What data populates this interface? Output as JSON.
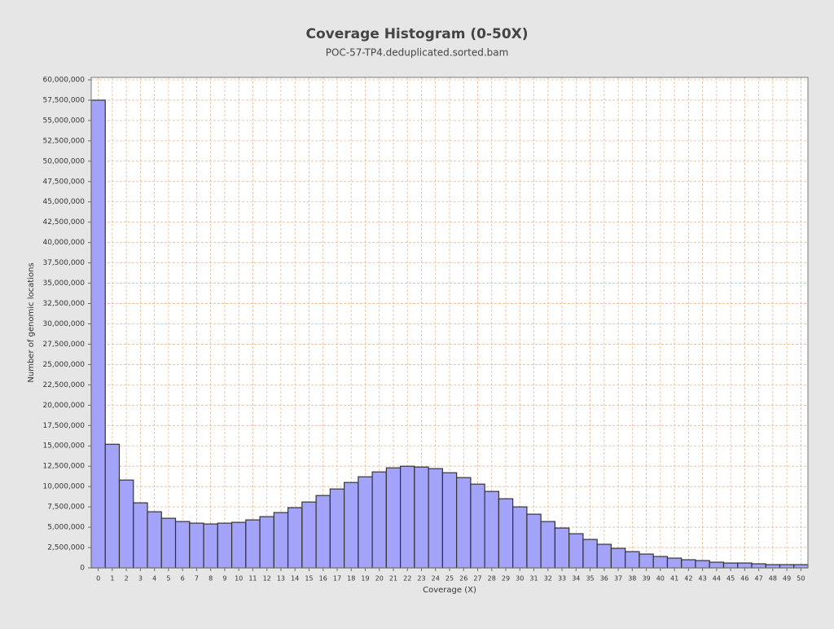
{
  "chart_data": {
    "type": "bar",
    "title": "Coverage Histogram (0-50X)",
    "subtitle": "POC-57-TP4.deduplicated.sorted.bam",
    "x_label": "Coverage (X)",
    "y_label": "Number of genomic locations",
    "categories": [
      "0",
      "1",
      "2",
      "3",
      "4",
      "5",
      "6",
      "7",
      "8",
      "9",
      "10",
      "11",
      "12",
      "13",
      "14",
      "15",
      "16",
      "17",
      "18",
      "19",
      "20",
      "21",
      "22",
      "23",
      "24",
      "25",
      "26",
      "27",
      "28",
      "29",
      "30",
      "31",
      "32",
      "33",
      "34",
      "35",
      "36",
      "37",
      "38",
      "39",
      "40",
      "41",
      "42",
      "43",
      "44",
      "45",
      "46",
      "47",
      "48",
      "49",
      "50"
    ],
    "values": [
      57500000,
      15200000,
      10800000,
      8000000,
      6900000,
      6100000,
      5700000,
      5500000,
      5400000,
      5500000,
      5600000,
      5900000,
      6300000,
      6800000,
      7400000,
      8100000,
      8900000,
      9700000,
      10500000,
      11200000,
      11800000,
      12300000,
      12500000,
      12400000,
      12200000,
      11700000,
      11100000,
      10300000,
      9400000,
      8500000,
      7500000,
      6600000,
      5700000,
      4900000,
      4200000,
      3500000,
      2900000,
      2400000,
      2000000,
      1700000,
      1400000,
      1200000,
      1000000,
      900000,
      700000,
      600000,
      600000,
      500000,
      400000,
      400000,
      400000
    ],
    "color": "#a3a3fa",
    "ylim": [
      0,
      60300000
    ],
    "yticks": [
      0,
      {
        "value": 2500000,
        "label": "2,500,000"
      },
      {
        "value": 5000000,
        "label": "5,000,000"
      },
      {
        "value": 7500000,
        "label": "7,500,000"
      },
      {
        "value": 10000000,
        "label": "10,000,000"
      },
      {
        "value": 12500000,
        "label": "12,500,000"
      },
      {
        "value": 15000000,
        "label": "15,000,000"
      },
      {
        "value": 17500000,
        "label": "17,500,000"
      },
      {
        "value": 20000000,
        "label": "20,000,000"
      },
      {
        "value": 22500000,
        "label": "22,500,000"
      },
      {
        "value": 25000000,
        "label": "25,000,000"
      },
      {
        "value": 27500000,
        "label": "27,500,000"
      },
      {
        "value": 30000000,
        "label": "30,000,000"
      },
      {
        "value": 32500000,
        "label": "32,500,000"
      },
      {
        "value": 35000000,
        "label": "35,000,000"
      },
      {
        "value": 37500000,
        "label": "37,500,000"
      },
      {
        "value": 40000000,
        "label": "40,000,000"
      },
      {
        "value": 42500000,
        "label": "42,500,000"
      },
      {
        "value": 45000000,
        "label": "45,000,000"
      },
      {
        "value": 47500000,
        "label": "47,500,000"
      },
      {
        "value": 50000000,
        "label": "50,000,000"
      },
      {
        "value": 52500000,
        "label": "52,500,000"
      },
      {
        "value": 55000000,
        "label": "55,000,000"
      },
      {
        "value": 57500000,
        "label": "57,500,000"
      },
      {
        "value": 60000000,
        "label": "60,000,000"
      }
    ],
    "grid": true
  }
}
